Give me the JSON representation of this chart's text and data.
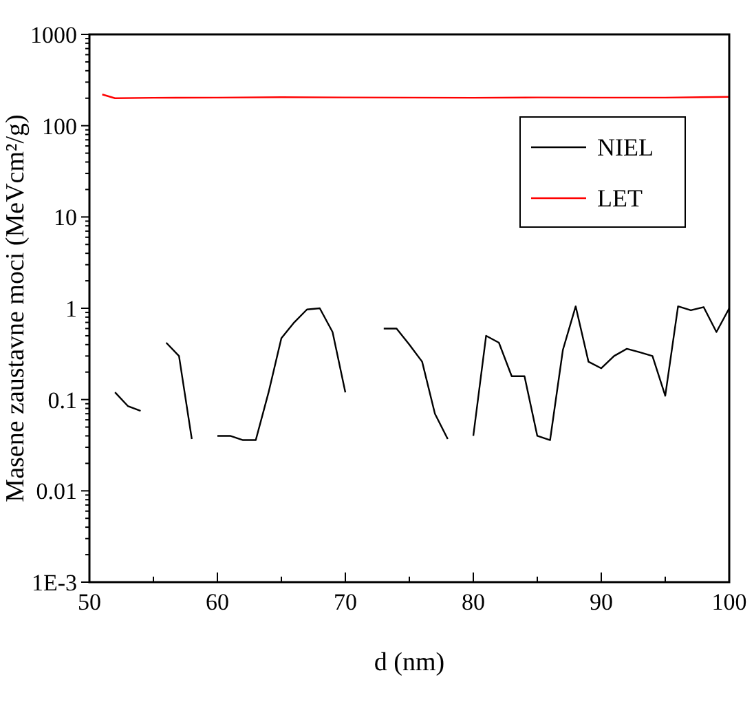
{
  "chart_data": {
    "type": "line",
    "xlabel": "d (nm)",
    "ylabel": "Masene zaustavne moci (MeVcm²/g)",
    "log": "y",
    "xlim": [
      50,
      100
    ],
    "xticks": [
      50,
      {
        "value": 55,
        "label": null
      },
      60,
      {
        "value": 65,
        "label": null
      },
      70,
      {
        "value": 75,
        "label": null
      },
      80,
      {
        "value": 85,
        "label": null
      },
      90,
      {
        "value": 95,
        "label": null
      },
      100
    ],
    "ylim": [
      0.001,
      1000
    ],
    "yticks": [
      {
        "value": 0.001,
        "label": "1E-3"
      },
      {
        "value": 0.002,
        "label": null
      },
      {
        "value": 0.003,
        "label": null
      },
      {
        "value": 0.004,
        "label": null
      },
      {
        "value": 0.005,
        "label": null
      },
      {
        "value": 0.006,
        "label": null
      },
      {
        "value": 0.007,
        "label": null
      },
      {
        "value": 0.008,
        "label": null
      },
      {
        "value": 0.009,
        "label": null
      },
      0.01,
      {
        "value": 0.02,
        "label": null
      },
      {
        "value": 0.03,
        "label": null
      },
      {
        "value": 0.04,
        "label": null
      },
      {
        "value": 0.05,
        "label": null
      },
      {
        "value": 0.06,
        "label": null
      },
      {
        "value": 0.07,
        "label": null
      },
      {
        "value": 0.08,
        "label": null
      },
      {
        "value": 0.09,
        "label": null
      },
      0.1,
      {
        "value": 0.2,
        "label": null
      },
      {
        "value": 0.3,
        "label": null
      },
      {
        "value": 0.4,
        "label": null
      },
      {
        "value": 0.5,
        "label": null
      },
      {
        "value": 0.6,
        "label": null
      },
      {
        "value": 0.7,
        "label": null
      },
      {
        "value": 0.8,
        "label": null
      },
      {
        "value": 0.9,
        "label": null
      },
      1,
      {
        "value": 2,
        "label": null
      },
      {
        "value": 3,
        "label": null
      },
      {
        "value": 4,
        "label": null
      },
      {
        "value": 5,
        "label": null
      },
      {
        "value": 6,
        "label": null
      },
      {
        "value": 7,
        "label": null
      },
      {
        "value": 8,
        "label": null
      },
      {
        "value": 9,
        "label": null
      },
      10,
      {
        "value": 20,
        "label": null
      },
      {
        "value": 30,
        "label": null
      },
      {
        "value": 40,
        "label": null
      },
      {
        "value": 50,
        "label": null
      },
      {
        "value": 60,
        "label": null
      },
      {
        "value": 70,
        "label": null
      },
      {
        "value": 80,
        "label": null
      },
      {
        "value": 90,
        "label": null
      },
      100,
      {
        "value": 200,
        "label": null
      },
      {
        "value": 300,
        "label": null
      },
      {
        "value": 400,
        "label": null
      },
      {
        "value": 500,
        "label": null
      },
      {
        "value": 600,
        "label": null
      },
      {
        "value": 700,
        "label": null
      },
      {
        "value": 800,
        "label": null
      },
      {
        "value": 900,
        "label": null
      },
      1000
    ],
    "grid": false,
    "legend": "top right",
    "line_style": "solid",
    "series": [
      {
        "name": "NIEL",
        "color": "#000000",
        "x": [
          52,
          53,
          54,
          55,
          56,
          57,
          58,
          59,
          60,
          61,
          62,
          63,
          64,
          65,
          66,
          67,
          68,
          69,
          70,
          71,
          72,
          73,
          74,
          75,
          76,
          77,
          78,
          79,
          80,
          81,
          82,
          83,
          84,
          85,
          86,
          87,
          88,
          89,
          90,
          91,
          92,
          93,
          94,
          95,
          96,
          97,
          98,
          99,
          100
        ],
        "values": [
          0.12,
          0.085,
          0.075,
          null,
          0.42,
          0.3,
          0.037,
          null,
          0.04,
          0.04,
          0.036,
          0.036,
          0.12,
          0.47,
          0.7,
          0.97,
          1.0,
          0.55,
          0.12,
          null,
          null,
          0.6,
          0.6,
          0.4,
          0.26,
          0.07,
          0.037,
          null,
          0.04,
          0.5,
          0.42,
          0.18,
          0.18,
          0.04,
          0.036,
          0.35,
          1.05,
          0.26,
          0.22,
          0.3,
          0.36,
          0.33,
          0.3,
          0.11,
          1.05,
          0.95,
          1.03,
          0.55,
          1.0
        ]
      },
      {
        "name": "LET",
        "color": "#ff0000",
        "x": [
          51,
          52,
          55,
          60,
          65,
          70,
          75,
          80,
          85,
          90,
          95,
          100
        ],
        "values": [
          220,
          200,
          202,
          203,
          205,
          204,
          203,
          202,
          204,
          203,
          203,
          207
        ]
      }
    ]
  }
}
